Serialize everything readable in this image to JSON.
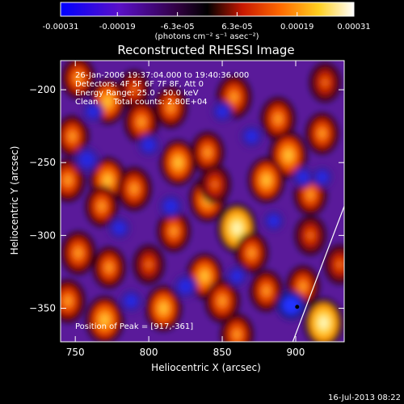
{
  "colorbar": {
    "tick_labels": [
      "-0.00031",
      "-0.00019",
      "-6.3e-05",
      "6.3e-05",
      "0.00019",
      "0.00031"
    ],
    "tick_values": [
      -0.00031,
      -0.00019,
      -6.3e-05,
      6.3e-05,
      0.00019,
      0.00031
    ],
    "range": [
      -0.00031,
      0.00031
    ],
    "unit_label": "(photons cm⁻² s⁻¹ asec⁻²)"
  },
  "chart_data": {
    "type": "heatmap",
    "title": "Reconstructed RHESSI Image",
    "xlabel": "Heliocentric X (arcsec)",
    "ylabel": "Heliocentric Y (arcsec)",
    "xlim": [
      740,
      933
    ],
    "ylim": [
      -373,
      -180
    ],
    "x_ticks": [
      750,
      800,
      850,
      900
    ],
    "x_tick_labels": [
      "750",
      "800",
      "850",
      "900"
    ],
    "y_ticks": [
      -200,
      -250,
      -300,
      -350
    ],
    "y_tick_labels": [
      "−200",
      "−250",
      "−300",
      "−350"
    ],
    "annotations": [
      "26-Jan-2006 19:37:04.000 to 19:40:36.000",
      "Detectors: 4F 5F 6F 7F 8F, Att 0",
      "Energy Range: 25.0 - 50.0 keV",
      "Clean      Total counts: 2.80E+04"
    ],
    "peak_label": "Position of Peak = [917,-361]",
    "peak": [
      917,
      -361
    ],
    "marker": [
      901,
      -349
    ],
    "limb_line": [
      [
        898,
        -373
      ],
      [
        933,
        -280
      ]
    ],
    "colormap": [
      "#1a1aff",
      "#6a1aa8",
      "#000000",
      "#d42000",
      "#ff8800",
      "#ffee55",
      "#ffffff"
    ],
    "blobs": [
      {
        "x": 752,
        "y": -192,
        "v": 0.6
      },
      {
        "x": 772,
        "y": -208,
        "v": 0.8
      },
      {
        "x": 790,
        "y": -200,
        "v": 0.5
      },
      {
        "x": 795,
        "y": -222,
        "v": 0.7
      },
      {
        "x": 815,
        "y": -212,
        "v": 0.6
      },
      {
        "x": 858,
        "y": -205,
        "v": 0.7
      },
      {
        "x": 888,
        "y": -220,
        "v": 0.7
      },
      {
        "x": 920,
        "y": -195,
        "v": 0.5
      },
      {
        "x": 895,
        "y": -245,
        "v": 0.9
      },
      {
        "x": 918,
        "y": -230,
        "v": 0.6
      },
      {
        "x": 880,
        "y": -262,
        "v": 0.8
      },
      {
        "x": 910,
        "y": -272,
        "v": 0.6
      },
      {
        "x": 748,
        "y": -232,
        "v": 0.6
      },
      {
        "x": 745,
        "y": -262,
        "v": 0.7
      },
      {
        "x": 772,
        "y": -262,
        "v": 0.8
      },
      {
        "x": 790,
        "y": -268,
        "v": 0.7
      },
      {
        "x": 768,
        "y": -280,
        "v": 0.6
      },
      {
        "x": 820,
        "y": -250,
        "v": 0.8
      },
      {
        "x": 840,
        "y": -243,
        "v": 0.6
      },
      {
        "x": 840,
        "y": -275,
        "v": 0.8
      },
      {
        "x": 860,
        "y": -295,
        "v": 1.0
      },
      {
        "x": 870,
        "y": -312,
        "v": 0.6
      },
      {
        "x": 817,
        "y": -297,
        "v": 0.6
      },
      {
        "x": 800,
        "y": -320,
        "v": 0.5
      },
      {
        "x": 838,
        "y": -328,
        "v": 0.8
      },
      {
        "x": 773,
        "y": -322,
        "v": 0.6
      },
      {
        "x": 752,
        "y": -312,
        "v": 0.7
      },
      {
        "x": 745,
        "y": -345,
        "v": 0.7
      },
      {
        "x": 770,
        "y": -358,
        "v": 0.9
      },
      {
        "x": 810,
        "y": -350,
        "v": 0.8
      },
      {
        "x": 850,
        "y": -345,
        "v": 0.7
      },
      {
        "x": 880,
        "y": -338,
        "v": 0.6
      },
      {
        "x": 905,
        "y": -335,
        "v": 0.6
      },
      {
        "x": 919,
        "y": -360,
        "v": 1.0
      },
      {
        "x": 930,
        "y": -320,
        "v": 0.5
      },
      {
        "x": 860,
        "y": -368,
        "v": 0.6
      },
      {
        "x": 845,
        "y": -265,
        "v": 0.5
      },
      {
        "x": 910,
        "y": -300,
        "v": 0.5
      },
      {
        "x": 758,
        "y": -248,
        "v": -0.7
      },
      {
        "x": 800,
        "y": -238,
        "v": -0.5
      },
      {
        "x": 815,
        "y": -280,
        "v": -0.6
      },
      {
        "x": 870,
        "y": -232,
        "v": -0.5
      },
      {
        "x": 905,
        "y": -260,
        "v": -0.4
      },
      {
        "x": 825,
        "y": -335,
        "v": -0.6
      },
      {
        "x": 788,
        "y": -345,
        "v": -0.5
      },
      {
        "x": 897,
        "y": -348,
        "v": -1.0
      },
      {
        "x": 780,
        "y": -295,
        "v": -0.5
      },
      {
        "x": 860,
        "y": -328,
        "v": -0.4
      },
      {
        "x": 918,
        "y": -260,
        "v": -0.4
      },
      {
        "x": 885,
        "y": -290,
        "v": -0.4
      },
      {
        "x": 850,
        "y": -215,
        "v": -0.4
      },
      {
        "x": 762,
        "y": -215,
        "v": -0.4
      }
    ]
  },
  "footer": {
    "timestamp": "16-Jul-2013 08:22"
  }
}
